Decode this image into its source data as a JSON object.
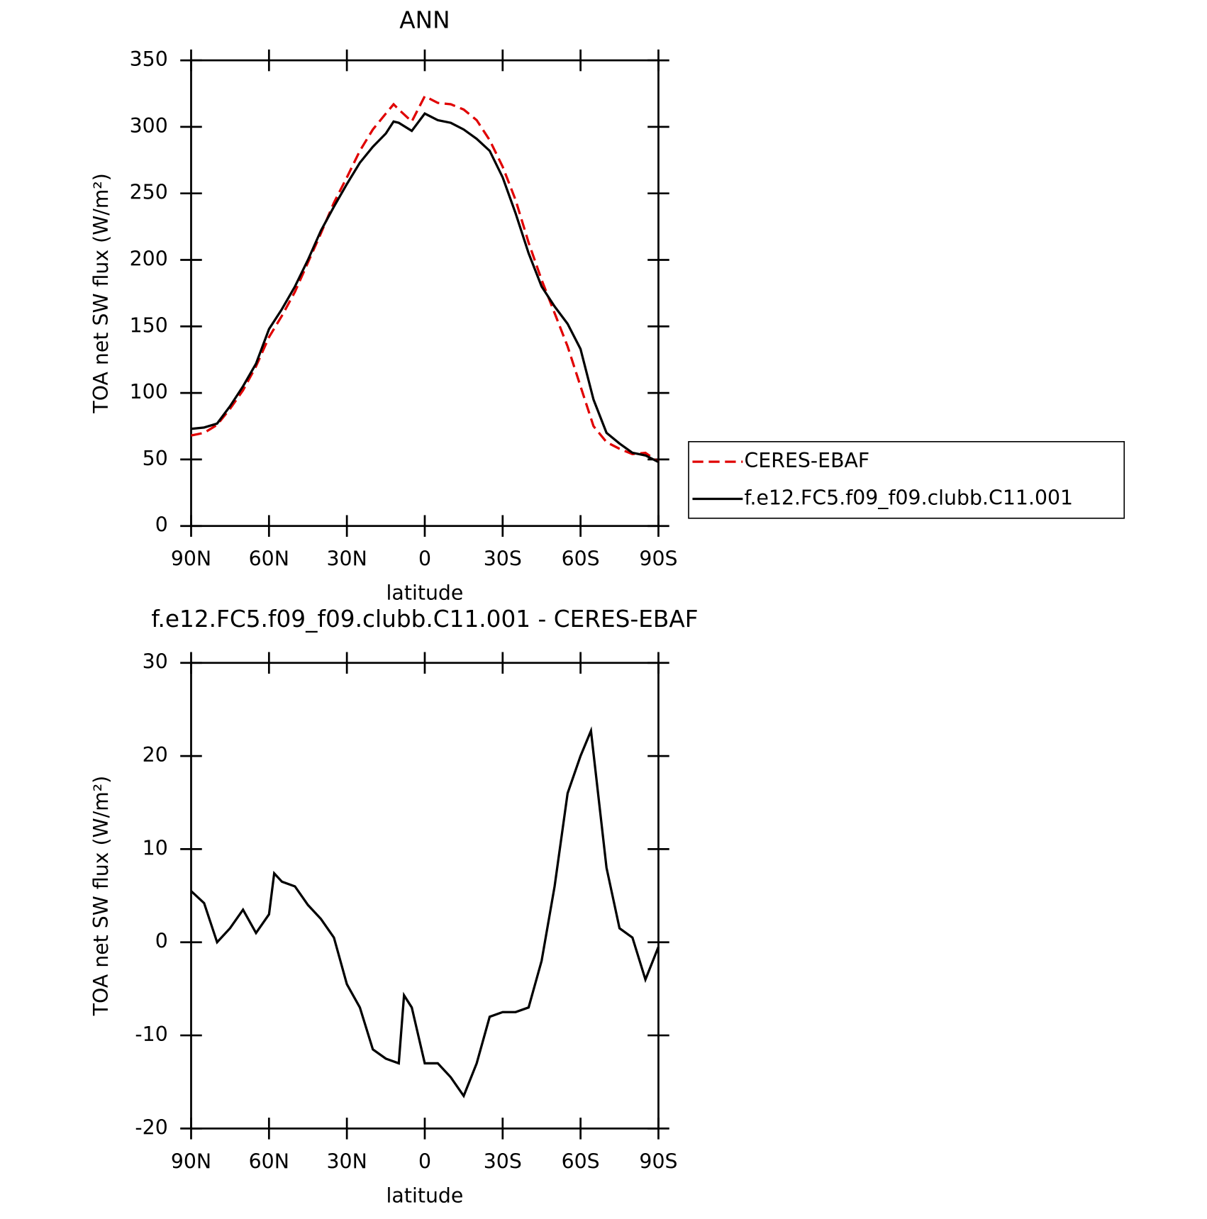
{
  "chart_data": [
    {
      "type": "line",
      "title": "ANN",
      "x_label": "latitude",
      "y_label": "TOA net SW flux (W/m²)",
      "xlim": [
        90,
        -90
      ],
      "xticks": [
        {
          "value": 90,
          "label": "90N"
        },
        {
          "value": 60,
          "label": "60N"
        },
        {
          "value": 30,
          "label": "30N"
        },
        0,
        {
          "value": -30,
          "label": "30S"
        },
        {
          "value": -60,
          "label": "60S"
        },
        {
          "value": -90,
          "label": "90S"
        }
      ],
      "ylim": [
        0,
        350
      ],
      "yticks": [
        0,
        50,
        100,
        150,
        200,
        250,
        300,
        350
      ],
      "legend": "right",
      "x": [
        90,
        85,
        80,
        75,
        70,
        65,
        60,
        55,
        50,
        45,
        40,
        35,
        30,
        25,
        20,
        15,
        12,
        10,
        5,
        0,
        -5,
        -10,
        -15,
        -20,
        -25,
        -30,
        -35,
        -40,
        -45,
        -50,
        -55,
        -60,
        -65,
        -70,
        -75,
        -80,
        -85,
        -90
      ],
      "series": [
        {
          "name": "CERES-EBAF",
          "color": "#e00000",
          "dash": true,
          "values": [
            68,
            70,
            76,
            88,
            102,
            120,
            142,
            158,
            176,
            198,
            220,
            243,
            262,
            282,
            298,
            310,
            317,
            313,
            304,
            323,
            318,
            317,
            313,
            305,
            290,
            270,
            245,
            213,
            185,
            160,
            135,
            105,
            75,
            63,
            58,
            54,
            55,
            48
          ]
        },
        {
          "name": "f.e12.FC5.f09_f09.clubb.C11.001",
          "color": "#000000",
          "dash": false,
          "values": [
            73,
            74,
            77,
            90,
            105,
            122,
            148,
            163,
            180,
            200,
            222,
            240,
            257,
            273,
            285,
            295,
            304,
            303,
            297,
            310,
            305,
            303,
            298,
            291,
            282,
            262,
            235,
            205,
            180,
            165,
            152,
            133,
            95,
            70,
            62,
            55,
            53,
            48
          ]
        }
      ]
    },
    {
      "type": "line",
      "title": "f.e12.FC5.f09_f09.clubb.C11.001 - CERES-EBAF",
      "x_label": "latitude",
      "y_label": "TOA net SW flux (W/m²)",
      "xlim": [
        90,
        -90
      ],
      "xticks": [
        {
          "value": 90,
          "label": "90N"
        },
        {
          "value": 60,
          "label": "60N"
        },
        {
          "value": 30,
          "label": "30N"
        },
        0,
        {
          "value": -30,
          "label": "30S"
        },
        {
          "value": -60,
          "label": "60S"
        },
        {
          "value": -90,
          "label": "90S"
        }
      ],
      "ylim": [
        -20,
        30
      ],
      "yticks": [
        -20,
        -10,
        0,
        10,
        20,
        30
      ],
      "x": [
        90,
        85,
        80,
        75,
        70,
        65,
        60,
        58,
        55,
        50,
        45,
        40,
        35,
        30,
        25,
        20,
        15,
        10,
        8,
        5,
        0,
        -5,
        -10,
        -15,
        -20,
        -25,
        -30,
        -35,
        -40,
        -45,
        -50,
        -55,
        -60,
        -64,
        -70,
        -75,
        -80,
        -85,
        -90
      ],
      "series": [
        {
          "color": "#000000",
          "dash": false,
          "values": [
            5.5,
            4.2,
            0,
            1.5,
            3.5,
            1,
            3,
            7.4,
            6.5,
            6,
            4,
            2.5,
            0.5,
            -4.5,
            -7,
            -11.5,
            -12.5,
            -13,
            -5.7,
            -7,
            -13,
            -13,
            -14.5,
            -16.5,
            -13,
            -8,
            -7.5,
            -7.5,
            -7,
            -2,
            6,
            16,
            20,
            22.7,
            8,
            1.5,
            0.5,
            -4,
            -0.5
          ]
        }
      ]
    }
  ]
}
